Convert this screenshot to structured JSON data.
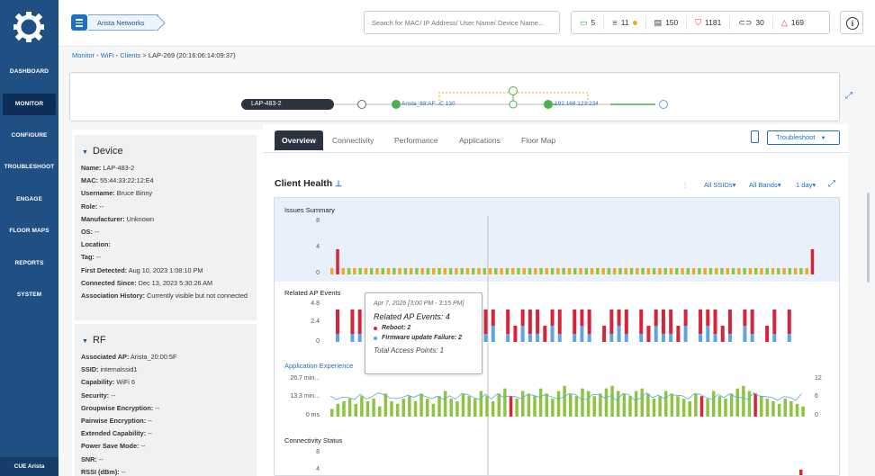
{
  "sidebar": {
    "items": [
      "DASHBOARD",
      "MONITOR",
      "CONFIGURE",
      "TROUBLESHOOT",
      "ENGAGE",
      "FLOOR MAPS",
      "REPORTS",
      "SYSTEM"
    ],
    "footer": "CUE Arista"
  },
  "header": {
    "org": "Arista Networks",
    "search_placeholder": "Search for MAC/ IP Address/ User Name/ Device Name...",
    "stats": [
      {
        "icon": "ap-icon",
        "value": "5",
        "color": "#2e9d3a"
      },
      {
        "icon": "switch-icon",
        "value": "11",
        "color": "#555"
      },
      {
        "icon": "device-icon",
        "value": "150",
        "color": "#555"
      },
      {
        "icon": "shield-icon",
        "value": "1181",
        "color": "#d33"
      },
      {
        "icon": "link-icon",
        "value": "30",
        "color": "#555"
      },
      {
        "icon": "warning-icon",
        "value": "169",
        "color": "#d33"
      }
    ]
  },
  "breadcrumb": {
    "monitor": "Monitor",
    "wifi": "WiFi",
    "clients": "Clients",
    "current": "LAP-269 (20:16:06:14:09:37)"
  },
  "topology": {
    "client": "LAP-483-2",
    "ap": "Arista_88:AF...C 130",
    "ip": "192.168.123.234"
  },
  "device": {
    "title": "Device",
    "fields": [
      [
        "Name:",
        "LAP-483-2"
      ],
      [
        "MAC:",
        "55:44:33:22:12:E4"
      ],
      [
        "Username:",
        "Bruce Binny"
      ],
      [
        "Role:",
        "--"
      ],
      [
        "Manufacturer:",
        "Unknown"
      ],
      [
        "OS:",
        "--"
      ],
      [
        "Location:",
        ""
      ],
      [
        "Tag:",
        "--"
      ],
      [
        "First Detected:",
        "Aug 10, 2023 1:08:10 PM"
      ],
      [
        "Connected Since:",
        "Dec 13, 2023 5:30:26 AM"
      ],
      [
        "Association History:",
        "Currently visible but not connected"
      ]
    ]
  },
  "rf": {
    "title": "RF",
    "fields": [
      [
        "Associated AP:",
        "Arista_20:00:5F"
      ],
      [
        "SSID:",
        "internalssid1"
      ],
      [
        "Capability:",
        "WiFi 6"
      ],
      [
        "Security:",
        "--"
      ],
      [
        "Groupwise Encryption:",
        "--"
      ],
      [
        "Pairwise Encryption:",
        "--"
      ],
      [
        "Extended Capability:",
        "--"
      ],
      [
        "Power Save Mode:",
        "--"
      ],
      [
        "SNR:",
        "--"
      ],
      [
        "RSSI (dBm):",
        "--"
      ]
    ]
  },
  "tabs": [
    "Overview",
    "Connectivity",
    "Performance",
    "Applications",
    "Floor Map"
  ],
  "troubleshoot": "Troubleshoot",
  "client_health": {
    "title": "Client Health",
    "ssids": "All SSIDs",
    "bands": "All Bands",
    "range": "1 day"
  },
  "sections": {
    "issues": "Issues Summary",
    "events": "Related AP Events",
    "app": "Application Experience",
    "conn": "Connectivity Status"
  },
  "axes": {
    "issues": [
      "8",
      "4",
      "0"
    ],
    "events": [
      "4.8",
      "2.4",
      "0"
    ],
    "app_left": [
      "26.7 min...",
      "13.3 min...",
      "0 ms"
    ],
    "app_right": [
      "12",
      "6",
      "0"
    ],
    "conn": [
      "8",
      "4"
    ]
  },
  "tooltip": {
    "date": "Apr 7, 2026 [3:00 PM - 3:15 PM]",
    "title": "Related AP Events: 4",
    "reboot": "Reboot: 2",
    "fw": "Firmware update Failure: 2",
    "total": "Total Access Points: 1"
  },
  "colors": {
    "red": "#d6243a",
    "blue": "#5ea3e6",
    "green": "#8cc63f",
    "orange": "#f2a81d",
    "brand": "#1f4f83"
  },
  "chart_data": [
    {
      "type": "bar",
      "title": "Issues Summary",
      "ylim": [
        0,
        8
      ],
      "series": [
        {
          "name": "issues",
          "values": [
            0,
            4,
            0,
            0,
            0,
            0,
            0,
            0,
            0,
            0,
            0,
            0,
            0,
            0,
            0,
            0,
            0,
            0,
            0,
            0,
            1,
            0,
            0,
            0,
            0,
            0,
            0,
            0,
            0,
            0,
            0,
            0,
            0,
            0,
            0,
            0,
            0,
            0,
            0,
            0,
            1,
            0,
            0,
            0,
            0,
            0,
            0,
            0,
            0,
            0,
            0,
            0,
            0,
            0,
            0,
            0,
            0,
            0,
            0,
            0,
            0,
            0,
            0,
            0,
            0,
            0,
            0,
            0,
            0,
            0,
            0,
            0,
            0,
            0,
            0,
            0,
            0,
            0,
            0,
            0,
            0,
            0,
            0,
            0,
            0,
            4
          ]
        }
      ]
    },
    {
      "type": "bar",
      "title": "Related AP Events",
      "ylim": [
        0,
        4.8
      ],
      "series": [
        {
          "name": "Reboot",
          "values": [
            3,
            0,
            3,
            3,
            2,
            3,
            0,
            3,
            0,
            2,
            3,
            0,
            3,
            2,
            2,
            3,
            2,
            2,
            0,
            3,
            3,
            2,
            0,
            3,
            2,
            2,
            3,
            3,
            2,
            2,
            3,
            0,
            3,
            2,
            3,
            0,
            2,
            3,
            2,
            3,
            0,
            3,
            2,
            2,
            3,
            3,
            2,
            2,
            0,
            3,
            2,
            3,
            2,
            3,
            0,
            2,
            3,
            0,
            2,
            3,
            0,
            3
          ]
        },
        {
          "name": "Firmware update Failure",
          "values": [
            1,
            0,
            1,
            1,
            2,
            1,
            0,
            1,
            0,
            0,
            1,
            0,
            1,
            0,
            2,
            1,
            0,
            2,
            0,
            1,
            1,
            2,
            0,
            1,
            0,
            2,
            1,
            1,
            0,
            2,
            1,
            0,
            1,
            2,
            1,
            0,
            0,
            1,
            2,
            1,
            0,
            1,
            0,
            2,
            1,
            1,
            0,
            2,
            0,
            1,
            2,
            1,
            0,
            1,
            0,
            2,
            1,
            0,
            0,
            1,
            0,
            1
          ]
        }
      ]
    },
    {
      "type": "bar",
      "title": "Application Experience",
      "ylim": [
        0,
        26.7
      ],
      "series": [
        {
          "name": "app",
          "values": [
            3,
            5,
            6,
            7,
            5,
            8,
            6,
            7,
            4,
            9,
            6,
            5,
            7,
            8,
            6,
            9,
            7,
            5,
            8,
            10,
            7,
            6,
            9,
            8,
            7,
            10,
            8,
            6,
            9,
            11,
            8,
            7,
            10,
            9,
            8,
            11,
            9,
            7,
            10,
            12,
            9,
            8,
            11,
            10,
            8,
            9,
            11,
            12,
            10,
            9,
            8,
            10,
            11,
            9,
            7,
            8,
            10,
            9,
            8,
            7,
            6,
            9,
            8,
            7,
            10,
            8,
            7,
            9,
            11,
            12,
            10,
            9,
            8,
            7,
            6,
            5,
            7,
            6,
            5,
            4
          ]
        }
      ]
    }
  ]
}
